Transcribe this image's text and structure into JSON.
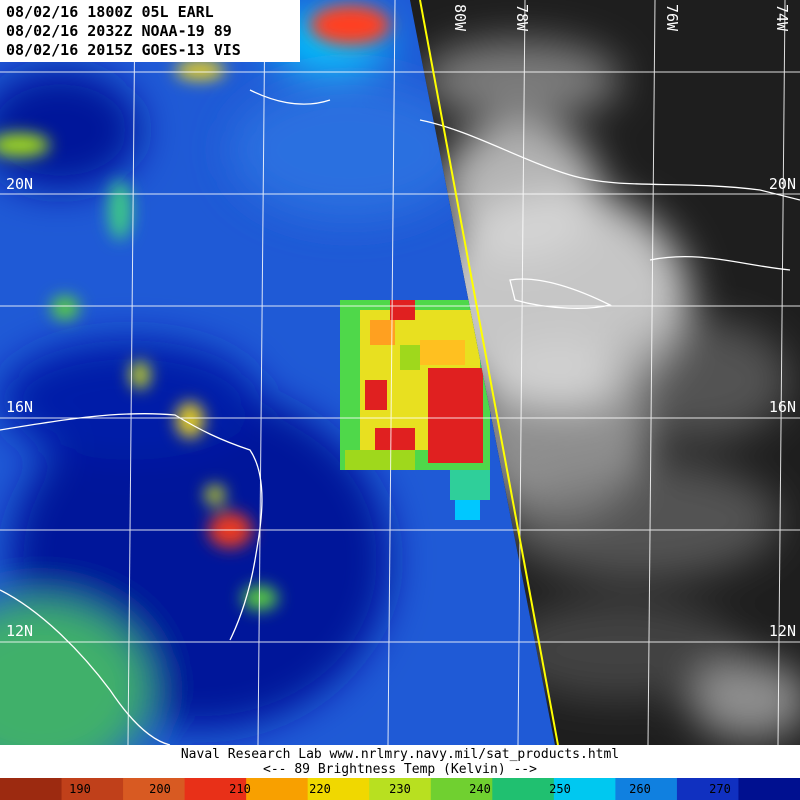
{
  "header": {
    "lines": [
      "08/02/16 1800Z 05L EARL",
      "08/02/16 2032Z NOAA-19 89",
      "08/02/16 2015Z GOES-13 VIS"
    ]
  },
  "latitude_labels": [
    "20N",
    "16N",
    "12N"
  ],
  "longitude_labels": [
    "80W",
    "78W",
    "76W",
    "74W"
  ],
  "footer": {
    "lines": [
      "Naval Research Lab  www.nrlmry.navy.mil/sat_products.html",
      "<--   89 Brightness Temp (Kelvin)   -->"
    ]
  },
  "colorbar": {
    "labels": [
      190,
      200,
      210,
      220,
      230,
      240,
      250,
      260,
      270
    ]
  }
}
